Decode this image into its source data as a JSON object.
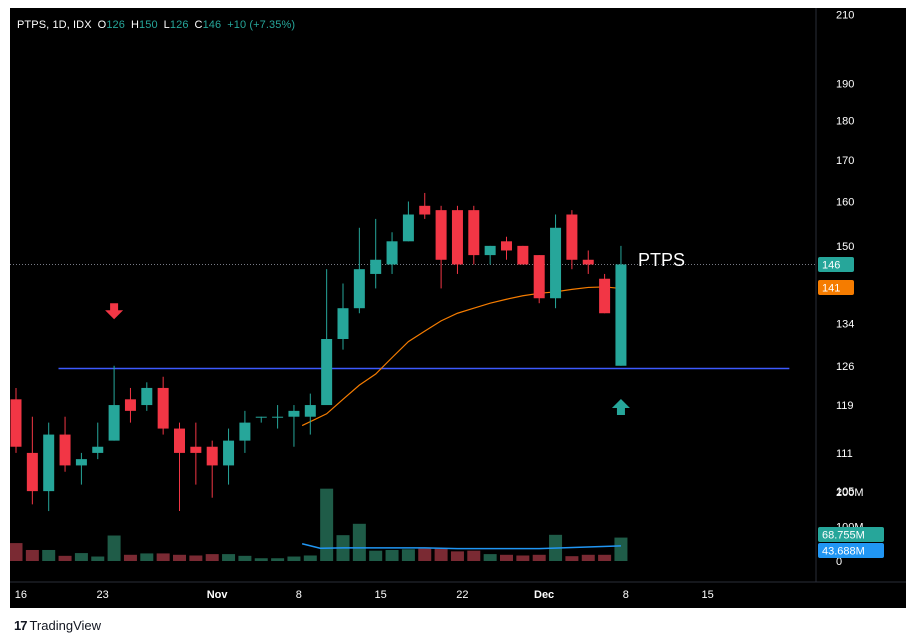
{
  "header": {
    "symbol": "PTPS, 1D, IDX",
    "open_label": "O",
    "open": "126",
    "high_label": "H",
    "high": "150",
    "low_label": "L",
    "low": "126",
    "close_label": "C",
    "close": "146",
    "change": "+10 (+7.35%)"
  },
  "watermark": "PTPS",
  "footer": {
    "brand": "TradingView",
    "logo": "17"
  },
  "colors": {
    "up": "#26a69a",
    "down": "#f23645",
    "ma": "#f57c00",
    "support_line": "#3d5afe",
    "volume_ma": "#2196f3",
    "up_volume": "#1f5c48",
    "down_volume": "#7a2a33"
  },
  "chart_data": {
    "type": "candlestick",
    "title": "",
    "price_scale": "log",
    "ylim": [
      92,
      212
    ],
    "price_ticks": [
      "210",
      "190",
      "180",
      "170",
      "160",
      "150",
      "134",
      "126",
      "119",
      "111",
      "105",
      "99"
    ],
    "x_ticks": [
      {
        "label": "16",
        "day": 0.3
      },
      {
        "label": "23",
        "day": 5.3
      },
      {
        "label": "Nov",
        "day": 12.3
      },
      {
        "label": "8",
        "day": 17.3
      },
      {
        "label": "15",
        "day": 22.3
      },
      {
        "label": "22",
        "day": 27.3
      },
      {
        "label": "Dec",
        "day": 32.3
      },
      {
        "label": "8",
        "day": 37.3
      },
      {
        "label": "15",
        "day": 42.3
      }
    ],
    "candles": [
      {
        "o": 120,
        "h": 122,
        "l": 111,
        "c": 112
      },
      {
        "o": 111,
        "h": 117,
        "l": 103,
        "c": 105
      },
      {
        "o": 105,
        "h": 116,
        "l": 102,
        "c": 114
      },
      {
        "o": 114,
        "h": 117,
        "l": 108,
        "c": 109
      },
      {
        "o": 109,
        "h": 111,
        "l": 106,
        "c": 110
      },
      {
        "o": 111,
        "h": 116,
        "l": 110,
        "c": 112
      },
      {
        "o": 113,
        "h": 126,
        "l": 113,
        "c": 119
      },
      {
        "o": 120,
        "h": 122,
        "l": 116,
        "c": 118
      },
      {
        "o": 119,
        "h": 123,
        "l": 118,
        "c": 122
      },
      {
        "o": 122,
        "h": 124,
        "l": 114,
        "c": 115
      },
      {
        "o": 115,
        "h": 116,
        "l": 102,
        "c": 111
      },
      {
        "o": 112,
        "h": 116,
        "l": 106,
        "c": 111
      },
      {
        "o": 112,
        "h": 113,
        "l": 104,
        "c": 109
      },
      {
        "o": 109,
        "h": 115,
        "l": 106,
        "c": 113
      },
      {
        "o": 113,
        "h": 118,
        "l": 111,
        "c": 116
      },
      {
        "o": 117,
        "h": 117,
        "l": 116,
        "c": 117
      },
      {
        "o": 117,
        "h": 119,
        "l": 115,
        "c": 117
      },
      {
        "o": 117,
        "h": 119,
        "l": 112,
        "c": 118
      },
      {
        "o": 117,
        "h": 121,
        "l": 114,
        "c": 119
      },
      {
        "o": 119,
        "h": 145,
        "l": 119,
        "c": 131
      },
      {
        "o": 131,
        "h": 142,
        "l": 129,
        "c": 137
      },
      {
        "o": 137,
        "h": 154,
        "l": 136,
        "c": 145
      },
      {
        "o": 144,
        "h": 156,
        "l": 141,
        "c": 147
      },
      {
        "o": 146,
        "h": 153,
        "l": 144,
        "c": 151
      },
      {
        "o": 151,
        "h": 160,
        "l": 151,
        "c": 157
      },
      {
        "o": 159,
        "h": 162,
        "l": 156,
        "c": 157
      },
      {
        "o": 158,
        "h": 159,
        "l": 141,
        "c": 147
      },
      {
        "o": 158,
        "h": 159,
        "l": 144,
        "c": 146
      },
      {
        "o": 158,
        "h": 159,
        "l": 146,
        "c": 148
      },
      {
        "o": 148,
        "h": 150,
        "l": 146,
        "c": 150
      },
      {
        "o": 151,
        "h": 152,
        "l": 147,
        "c": 149
      },
      {
        "o": 150,
        "h": 150,
        "l": 146,
        "c": 146
      },
      {
        "o": 148,
        "h": 148,
        "l": 138,
        "c": 139
      },
      {
        "o": 139,
        "h": 157,
        "l": 137,
        "c": 154
      },
      {
        "o": 157,
        "h": 158,
        "l": 145,
        "c": 147
      },
      {
        "o": 147,
        "h": 149,
        "l": 144,
        "c": 146
      },
      {
        "o": 143,
        "h": 144,
        "l": 136,
        "c": 136
      },
      {
        "o": 126,
        "h": 150,
        "l": 126,
        "c": 146
      }
    ],
    "ma": [
      {
        "i": 17.5,
        "v": 115.5
      },
      {
        "i": 19,
        "v": 117.5
      },
      {
        "i": 20,
        "v": 120
      },
      {
        "i": 21,
        "v": 122.5
      },
      {
        "i": 22,
        "v": 124.5
      },
      {
        "i": 23,
        "v": 127.5
      },
      {
        "i": 24,
        "v": 130.5
      },
      {
        "i": 25,
        "v": 132.5
      },
      {
        "i": 26,
        "v": 134.5
      },
      {
        "i": 27,
        "v": 136
      },
      {
        "i": 28,
        "v": 137
      },
      {
        "i": 29,
        "v": 138
      },
      {
        "i": 30,
        "v": 138.8
      },
      {
        "i": 31,
        "v": 139.5
      },
      {
        "i": 32,
        "v": 140
      },
      {
        "i": 33,
        "v": 140.3
      },
      {
        "i": 34,
        "v": 140.8
      },
      {
        "i": 35,
        "v": 141.2
      },
      {
        "i": 36,
        "v": 141.3
      },
      {
        "i": 37,
        "v": 141
      }
    ],
    "support_level": 125.5,
    "support_range": [
      2.6,
      47.3
    ],
    "arrows": [
      {
        "type": "down",
        "i": 6,
        "price": 136,
        "color": "#f23645"
      },
      {
        "type": "up",
        "i": 37,
        "price": 119,
        "color": "#26a69a"
      }
    ],
    "last_price_label": "146",
    "ma_label": "141",
    "volume": {
      "unit": "M",
      "ylim": [
        0,
        270
      ],
      "ticks": [
        "200M",
        "100M",
        "0"
      ],
      "values": [
        52,
        32,
        32,
        15,
        23,
        13,
        74,
        18,
        22,
        22,
        18,
        16,
        20,
        20,
        15,
        8,
        8,
        13,
        16,
        210,
        75,
        108,
        30,
        32,
        34,
        36,
        36,
        28,
        30,
        20,
        18,
        16,
        18,
        76,
        14,
        18,
        18,
        68
      ],
      "ma": [
        {
          "i": 17.5,
          "v": 50
        },
        {
          "i": 18.6,
          "v": 37
        },
        {
          "i": 20,
          "v": 38
        },
        {
          "i": 25,
          "v": 38
        },
        {
          "i": 27,
          "v": 36
        },
        {
          "i": 32,
          "v": 36
        },
        {
          "i": 37,
          "v": 44
        }
      ],
      "last_label": "68.755M",
      "ma_label": "43.688M"
    }
  }
}
